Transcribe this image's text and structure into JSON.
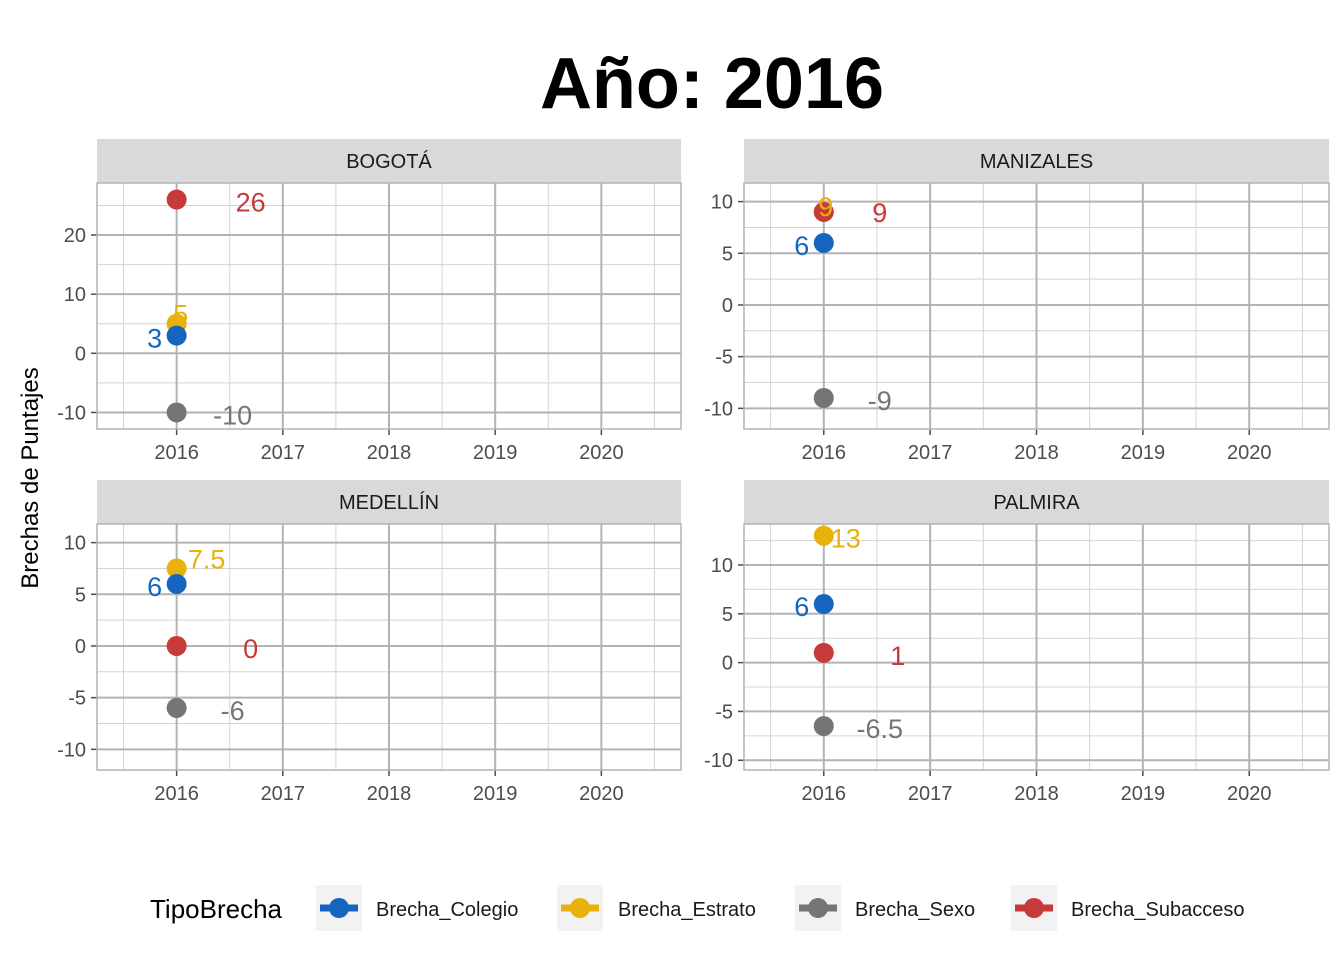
{
  "chart_data": {
    "type": "scatter",
    "title": "Año: 2016",
    "xlabel": "",
    "ylabel": "Brechas de Puntajes",
    "x_ticks": [
      2016,
      2017,
      2018,
      2019,
      2020
    ],
    "x_range": [
      2015.25,
      2020.75
    ],
    "grid": true,
    "legend": {
      "title": "TipoBrecha",
      "placement": "bottom",
      "entries": [
        "Brecha_Colegio",
        "Brecha_Estrato",
        "Brecha_Sexo",
        "Brecha_Subacceso"
      ]
    },
    "colors": {
      "Brecha_Colegio": "#1565C0",
      "Brecha_Estrato": "#E8B10B",
      "Brecha_Sexo": "#757575",
      "Brecha_Subacceso": "#C73A3A"
    },
    "panels": [
      {
        "name": "BOGOTÁ",
        "y_ticks": [
          -10,
          0,
          10,
          20
        ],
        "y_range": [
          -12.8,
          28.8
        ],
        "points": [
          {
            "series": "Brecha_Subacceso",
            "x": 2016,
            "y": 26,
            "label": "26"
          },
          {
            "series": "Brecha_Estrato",
            "x": 2016,
            "y": 5,
            "label": "5"
          },
          {
            "series": "Brecha_Colegio",
            "x": 2016,
            "y": 3,
            "label": "3"
          },
          {
            "series": "Brecha_Sexo",
            "x": 2016,
            "y": -10,
            "label": "-10"
          }
        ]
      },
      {
        "name": "MANIZALES",
        "y_ticks": [
          -10,
          -5,
          0,
          5,
          10
        ],
        "y_range": [
          -12,
          11.8
        ],
        "points": [
          {
            "series": "Brecha_Estrato",
            "x": 2016,
            "y": 9,
            "label": "9"
          },
          {
            "series": "Brecha_Subacceso",
            "x": 2016,
            "y": 9,
            "label": "9"
          },
          {
            "series": "Brecha_Colegio",
            "x": 2016,
            "y": 6,
            "label": "6"
          },
          {
            "series": "Brecha_Sexo",
            "x": 2016,
            "y": -9,
            "label": "-9"
          }
        ]
      },
      {
        "name": "MEDELLÍN",
        "y_ticks": [
          -10,
          -5,
          0,
          5,
          10
        ],
        "y_range": [
          -12,
          11.8
        ],
        "points": [
          {
            "series": "Brecha_Estrato",
            "x": 2016,
            "y": 7.5,
            "label": "7.5"
          },
          {
            "series": "Brecha_Colegio",
            "x": 2016,
            "y": 6,
            "label": "6"
          },
          {
            "series": "Brecha_Subacceso",
            "x": 2016,
            "y": 0,
            "label": "0"
          },
          {
            "series": "Brecha_Sexo",
            "x": 2016,
            "y": -6,
            "label": "-6"
          }
        ]
      },
      {
        "name": "PALMIRA",
        "y_ticks": [
          -10,
          -5,
          0,
          5,
          10
        ],
        "y_range": [
          -11,
          14.2
        ],
        "points": [
          {
            "series": "Brecha_Estrato",
            "x": 2016,
            "y": 13,
            "label": "13"
          },
          {
            "series": "Brecha_Colegio",
            "x": 2016,
            "y": 6,
            "label": "6"
          },
          {
            "series": "Brecha_Subacceso",
            "x": 2016,
            "y": 1,
            "label": "1"
          },
          {
            "series": "Brecha_Sexo",
            "x": 2016,
            "y": -6.5,
            "label": "-6.5"
          }
        ]
      }
    ]
  }
}
